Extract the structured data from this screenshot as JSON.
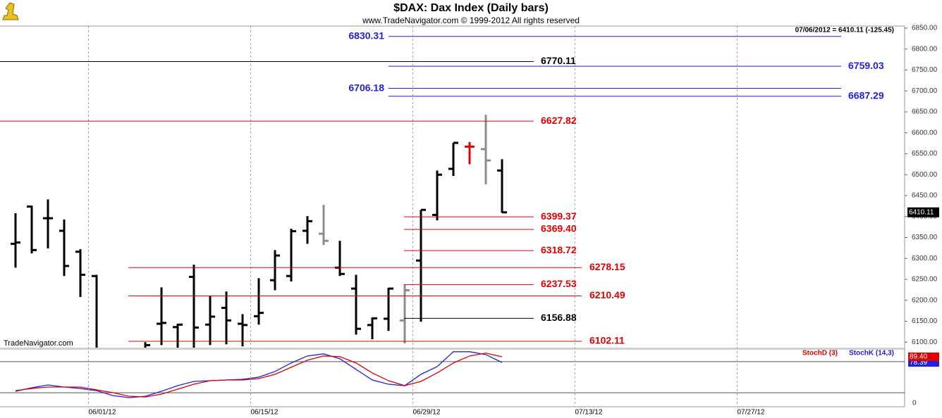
{
  "chart_data": [
    {
      "type": "ohlc",
      "title": "$DAX:  Dax Index  (Daily bars)",
      "subtitle": "www.TradeNavigator.com © 1999-2012 All rights reserved",
      "annotation": "07/06/2012 = 6410.11 (-125.45)",
      "watermark": "TradeNavigator.com",
      "grid": true,
      "categories": [
        null,
        null,
        null,
        null,
        null,
        "06/01/12",
        null,
        null,
        null,
        null,
        null,
        null,
        null,
        null,
        null,
        "06/15/12",
        null,
        null,
        null,
        null,
        null,
        null,
        null,
        null,
        null,
        "06/29/12",
        null,
        null,
        null,
        null,
        null,
        null,
        null,
        null,
        null,
        "07/13/12",
        null,
        null,
        null,
        null,
        null,
        null,
        null,
        null,
        null,
        "07/27/12",
        null,
        null,
        null,
        null,
        null,
        null,
        null,
        null,
        null
      ],
      "open": [
        6335,
        6424,
        6396,
        6366,
        6316,
        6258,
        null,
        null,
        5990,
        6144,
        6136,
        6256,
        6142,
        6182,
        6144,
        6162,
        6248,
        6258,
        6366,
        6359,
        6278,
        6228,
        6141,
        6156,
        6152,
        6295,
        6404,
        6514,
        6567,
        6561,
        6510,
        null,
        null,
        null,
        null,
        null,
        null,
        null,
        null,
        null,
        null,
        null,
        null,
        null,
        null,
        null,
        null,
        null,
        null,
        null,
        null,
        null,
        null,
        null,
        null
      ],
      "high": [
        6408,
        6426,
        6441,
        6393,
        6322,
        6261,
        null,
        null,
        6100,
        6231,
        6144,
        6285,
        6211,
        6221,
        6167,
        6253,
        6320,
        6371,
        6401,
        6428,
        6342,
        6261,
        6159,
        6230,
        6238,
        6416,
        6510,
        6576,
        6578,
        6643,
        6537,
        null,
        null,
        null,
        null,
        null,
        null,
        null,
        null,
        null,
        null,
        null,
        null,
        null,
        null,
        null,
        null,
        null,
        null,
        null,
        null,
        null,
        null,
        null,
        null
      ],
      "low": [
        6278,
        6312,
        6324,
        6258,
        6208,
        6045,
        null,
        null,
        5985,
        6093,
        6087,
        6087,
        6093,
        6095,
        6090,
        6142,
        6224,
        6245,
        6335,
        6332,
        6258,
        6118,
        6107,
        6127,
        6097,
        6149,
        6391,
        6497,
        6525,
        6477,
        6409,
        null,
        null,
        null,
        null,
        null,
        null,
        null,
        null,
        null,
        null,
        null,
        null,
        null,
        null,
        null,
        null,
        null,
        null,
        null,
        null,
        null,
        null,
        null,
        null
      ],
      "close": [
        6338,
        6320,
        6396,
        6282,
        6261,
        6050,
        null,
        null,
        6093,
        6146,
        6142,
        6135,
        6161,
        6152,
        6141,
        6170,
        6307,
        6365,
        6389,
        6342,
        6263,
        6132,
        6157,
        6228,
        6224,
        6416,
        6500,
        6576,
        6567,
        6534,
        6410.11,
        null,
        null,
        null,
        null,
        null,
        null,
        null,
        null,
        null,
        null,
        null,
        null,
        null,
        null,
        null,
        null,
        null,
        null,
        null,
        null,
        null,
        null,
        null,
        null
      ],
      "colors": [
        "#000000",
        "#000000",
        "#000000",
        "#000000",
        "#000000",
        "#000000",
        null,
        null,
        "#000000",
        "#000000",
        "#000000",
        "#000000",
        "#000000",
        "#000000",
        "#000000",
        "#000000",
        "#000000",
        "#000000",
        "#000000",
        "#8c8c8c",
        "#000000",
        "#000000",
        "#000000",
        "#000000",
        "#8c8c8c",
        "#000000",
        "#000000",
        "#000000",
        "#e00000",
        "#8c8c8c",
        "#000000",
        null,
        null,
        null,
        null,
        null,
        null,
        null,
        null,
        null,
        null,
        null,
        null,
        null,
        null,
        null,
        null,
        null,
        null,
        null,
        null,
        null,
        null,
        null,
        null
      ],
      "ylim": [
        6087,
        6855
      ],
      "yticks": [
        {
          "value": 6100,
          "label": "6100.00"
        },
        {
          "value": 6150,
          "label": "6150.00"
        },
        {
          "value": 6200,
          "label": "6200.00"
        },
        {
          "value": 6250,
          "label": "6250.00"
        },
        {
          "value": 6300,
          "label": "6300.00"
        },
        {
          "value": 6350,
          "label": "6350.00"
        },
        {
          "value": 6400,
          "label": "6400.00"
        },
        {
          "value": 6450,
          "label": "6450.00"
        },
        {
          "value": 6500,
          "label": "6500.00"
        },
        {
          "value": 6550,
          "label": "6550.00"
        },
        {
          "value": 6600,
          "label": "6600.00"
        },
        {
          "value": 6650,
          "label": "6650.00"
        },
        {
          "value": 6700,
          "label": "6700.00"
        },
        {
          "value": 6750,
          "label": "6750.00"
        },
        {
          "value": 6800,
          "label": "6800.00"
        },
        {
          "value": 6850,
          "label": "6850.00"
        }
      ],
      "levels": [
        {
          "value": 6830.31,
          "label": "6830.31",
          "color": "#1f1fe0"
        },
        {
          "value": 6770.11,
          "label": "6770.11",
          "color": "#000000"
        },
        {
          "value": 6759.03,
          "label": "6759.03",
          "color": "#1f1fe0"
        },
        {
          "value": 6706.18,
          "label": "6706.18",
          "color": "#1f1fe0"
        },
        {
          "value": 6687.29,
          "label": "6687.29",
          "color": "#1f1fe0"
        },
        {
          "value": 6627.82,
          "label": "6627.82",
          "color": "#e00000"
        },
        {
          "value": 6399.37,
          "label": "6399.37",
          "color": "#e00000"
        },
        {
          "value": 6369.4,
          "label": "6369.40",
          "color": "#e00000"
        },
        {
          "value": 6318.72,
          "label": "6318.72",
          "color": "#e00000"
        },
        {
          "value": 6278.15,
          "label": "6278.15",
          "color": "#e00000"
        },
        {
          "value": 6237.53,
          "label": "6237.53",
          "color": "#e00000"
        },
        {
          "value": 6210.49,
          "label": "6210.49",
          "color": "#e00000"
        },
        {
          "value": 6156.88,
          "label": "6156.88",
          "color": "#000000"
        },
        {
          "value": 6102.11,
          "label": "6102.11",
          "color": "#e00000"
        }
      ]
    },
    {
      "type": "line",
      "ylim": [
        -7,
        103
      ],
      "yticks": [
        0
      ],
      "hlines": [
        20,
        80
      ],
      "series": [
        {
          "name": "StochD (3)",
          "color": "#e00000",
          "values": [
            24.1,
            28.2,
            31.0,
            31.0,
            31.0,
            25.5,
            20.1,
            13.2,
            11.9,
            17.3,
            26.9,
            36.4,
            43.2,
            44.6,
            44.6,
            47.3,
            55.5,
            69.2,
            82.8,
            91.0,
            89.7,
            77.4,
            58.3,
            43.2,
            33.7,
            41.9,
            58.3,
            77.4,
            91.0,
            96.5,
            89.4,
            null,
            null,
            null,
            null,
            null,
            null,
            null,
            null,
            null,
            null,
            null,
            null,
            null,
            null,
            null,
            null,
            null,
            null,
            null,
            null,
            null,
            null,
            null,
            null
          ],
          "value_labels": [
            null,
            null,
            null,
            null,
            null,
            null,
            null,
            null,
            null,
            null,
            null,
            null,
            null,
            null,
            null,
            null,
            null,
            null,
            null,
            null,
            null,
            null,
            null,
            null,
            null,
            null,
            null,
            null,
            null,
            null,
            "89.40",
            null,
            null,
            null,
            null,
            null,
            null,
            null,
            null,
            null,
            null,
            null,
            null,
            null,
            null,
            null,
            null,
            null,
            null,
            null,
            null,
            null,
            null,
            null,
            null
          ]
        },
        {
          "name": "StochK (14,3)",
          "color": "#1f1fe0",
          "values": [
            22.8,
            29.6,
            35.1,
            31.0,
            28.2,
            24.1,
            14.6,
            10.5,
            13.2,
            22.8,
            33.7,
            41.9,
            43.2,
            44.6,
            46.0,
            50.1,
            61.0,
            77.4,
            91.0,
            95.1,
            85.5,
            65.1,
            44.6,
            36.4,
            33.7,
            55.5,
            70.5,
            99.2,
            99.2,
            93.7,
            78.39,
            null,
            null,
            null,
            null,
            null,
            null,
            null,
            null,
            null,
            null,
            null,
            null,
            null,
            null,
            null,
            null,
            null,
            null,
            null,
            null,
            null,
            null,
            null,
            null
          ]
        }
      ]
    }
  ]
}
